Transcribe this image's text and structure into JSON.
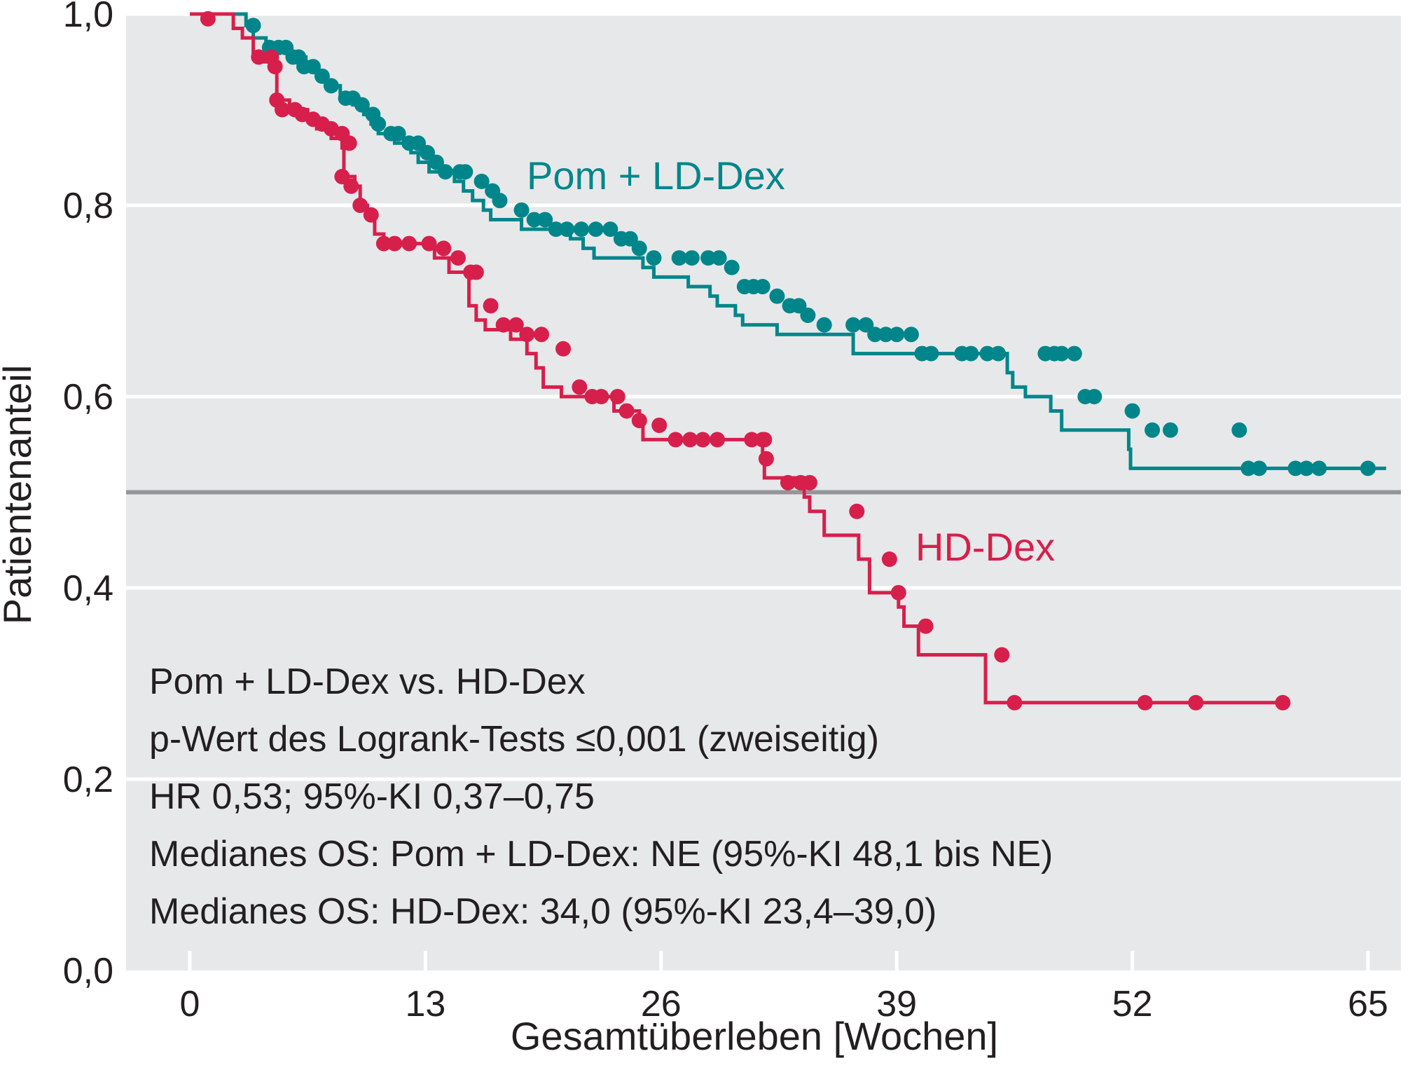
{
  "chart_data": {
    "type": "line",
    "subtype": "kaplan-meier",
    "xlabel": "Gesamtüberleben [Wochen]",
    "ylabel": "Patientenanteil",
    "xlim": [
      -3.5,
      66
    ],
    "ylim": [
      0,
      1.0
    ],
    "x_ticks": [
      0,
      13,
      26,
      39,
      52,
      65
    ],
    "x_tick_labels": [
      "0",
      "13",
      "26",
      "39",
      "52",
      "65"
    ],
    "y_ticks": [
      0.0,
      0.2,
      0.4,
      0.6,
      0.8,
      1.0
    ],
    "y_tick_labels": [
      "0,0",
      "0,2",
      "0,4",
      "0,6",
      "0,8",
      "1,0"
    ],
    "grid": "horizontal",
    "background_color": "#e7e8ea",
    "grid_color": "#ffffff",
    "reference_line": {
      "y": 0.5,
      "color": "#939598"
    },
    "series": [
      {
        "name": "Pom + LD-Dex",
        "color": "#00868a",
        "steps": [
          [
            0,
            1.0
          ],
          [
            3.1,
            0.988
          ],
          [
            3.5,
            0.975
          ],
          [
            4.2,
            0.965
          ],
          [
            5.5,
            0.955
          ],
          [
            6.4,
            0.945
          ],
          [
            7.1,
            0.935
          ],
          [
            7.6,
            0.925
          ],
          [
            8.3,
            0.912
          ],
          [
            9.0,
            0.905
          ],
          [
            9.6,
            0.895
          ],
          [
            10.0,
            0.885
          ],
          [
            10.4,
            0.875
          ],
          [
            11.3,
            0.865
          ],
          [
            12.2,
            0.855
          ],
          [
            12.6,
            0.845
          ],
          [
            13.2,
            0.835
          ],
          [
            14.6,
            0.825
          ],
          [
            15.1,
            0.815
          ],
          [
            15.6,
            0.805
          ],
          [
            16.2,
            0.795
          ],
          [
            16.6,
            0.785
          ],
          [
            18.3,
            0.775
          ],
          [
            21.0,
            0.765
          ],
          [
            21.7,
            0.755
          ],
          [
            22.3,
            0.745
          ],
          [
            25.0,
            0.735
          ],
          [
            25.6,
            0.725
          ],
          [
            27.5,
            0.715
          ],
          [
            28.7,
            0.705
          ],
          [
            29.1,
            0.695
          ],
          [
            30.1,
            0.685
          ],
          [
            30.5,
            0.675
          ],
          [
            32.4,
            0.665
          ],
          [
            36.6,
            0.645
          ],
          [
            45.1,
            0.625
          ],
          [
            45.4,
            0.61
          ],
          [
            46.1,
            0.6
          ],
          [
            47.5,
            0.585
          ],
          [
            48.1,
            0.565
          ],
          [
            51.8,
            0.545
          ],
          [
            51.9,
            0.525
          ]
        ],
        "end_x": 66.0,
        "censored_x": [
          3.5,
          4.4,
          4.9,
          5.3,
          5.7,
          6.0,
          6.3,
          6.8,
          7.3,
          7.8,
          8.6,
          9.0,
          9.5,
          10.1,
          10.4,
          11.1,
          11.5,
          12.1,
          12.6,
          13.1,
          13.6,
          14.1,
          14.9,
          15.2,
          16.1,
          16.7,
          17.1,
          18.3,
          19.0,
          19.6,
          20.2,
          20.8,
          21.6,
          22.4,
          23.2,
          23.8,
          24.3,
          24.8,
          25.6,
          27.0,
          27.7,
          28.6,
          29.2,
          29.9,
          30.6,
          31.1,
          31.6,
          32.4,
          33.1,
          33.6,
          34.1,
          35.0,
          36.6,
          37.3,
          37.8,
          38.4,
          39.0,
          39.8,
          40.4,
          40.9,
          42.6,
          43.1,
          44.0,
          44.6,
          47.2,
          47.7,
          48.1,
          48.8,
          49.4,
          49.9,
          52.0,
          53.1,
          54.1,
          57.9,
          58.4,
          59.0,
          61.0,
          61.6,
          62.3,
          65.0
        ],
        "censored_y": [
          0.988,
          0.965,
          0.965,
          0.965,
          0.955,
          0.955,
          0.945,
          0.945,
          0.935,
          0.925,
          0.912,
          0.912,
          0.905,
          0.895,
          0.885,
          0.875,
          0.875,
          0.865,
          0.865,
          0.855,
          0.845,
          0.835,
          0.835,
          0.835,
          0.825,
          0.815,
          0.805,
          0.795,
          0.785,
          0.785,
          0.775,
          0.775,
          0.775,
          0.775,
          0.775,
          0.765,
          0.765,
          0.755,
          0.745,
          0.745,
          0.745,
          0.745,
          0.745,
          0.735,
          0.715,
          0.715,
          0.715,
          0.705,
          0.695,
          0.695,
          0.685,
          0.675,
          0.675,
          0.675,
          0.665,
          0.665,
          0.665,
          0.665,
          0.645,
          0.645,
          0.645,
          0.645,
          0.645,
          0.645,
          0.645,
          0.645,
          0.645,
          0.645,
          0.6,
          0.6,
          0.585,
          0.565,
          0.565,
          0.565,
          0.525,
          0.525,
          0.525,
          0.525,
          0.525,
          0.525
        ],
        "label_text": "Pom + LD-Dex"
      },
      {
        "name": "HD-Dex",
        "color": "#d71f4b",
        "steps": [
          [
            0,
            1.0
          ],
          [
            2.4,
            0.985
          ],
          [
            2.9,
            0.975
          ],
          [
            3.5,
            0.96
          ],
          [
            3.9,
            0.95
          ],
          [
            4.6,
            0.94
          ],
          [
            4.8,
            0.91
          ],
          [
            5.5,
            0.9
          ],
          [
            6.5,
            0.89
          ],
          [
            7.0,
            0.88
          ],
          [
            7.8,
            0.87
          ],
          [
            8.4,
            0.86
          ],
          [
            8.5,
            0.83
          ],
          [
            9.1,
            0.82
          ],
          [
            9.4,
            0.8
          ],
          [
            9.8,
            0.79
          ],
          [
            10.2,
            0.77
          ],
          [
            10.7,
            0.76
          ],
          [
            13.5,
            0.745
          ],
          [
            14.3,
            0.73
          ],
          [
            15.4,
            0.695
          ],
          [
            15.8,
            0.68
          ],
          [
            16.3,
            0.67
          ],
          [
            17.7,
            0.66
          ],
          [
            18.6,
            0.645
          ],
          [
            19.1,
            0.63
          ],
          [
            19.5,
            0.61
          ],
          [
            20.5,
            0.6
          ],
          [
            23.4,
            0.585
          ],
          [
            24.8,
            0.57
          ],
          [
            25.0,
            0.555
          ],
          [
            31.6,
            0.535
          ],
          [
            31.7,
            0.515
          ],
          [
            33.9,
            0.495
          ],
          [
            34.2,
            0.48
          ],
          [
            35.0,
            0.455
          ],
          [
            36.9,
            0.43
          ],
          [
            37.5,
            0.395
          ],
          [
            39.1,
            0.38
          ],
          [
            39.4,
            0.36
          ],
          [
            40.2,
            0.33
          ],
          [
            43.9,
            0.28
          ]
        ],
        "end_x": 60.5,
        "censored_x": [
          1.0,
          3.8,
          4.5,
          4.7,
          4.8,
          5.1,
          5.8,
          6.2,
          6.8,
          7.3,
          7.8,
          8.4,
          8.8,
          8.4,
          8.9,
          9.4,
          10.0,
          10.7,
          11.3,
          12.1,
          13.2,
          14.0,
          14.8,
          15.5,
          15.8,
          16.6,
          17.3,
          18.0,
          18.6,
          19.4,
          20.6,
          21.5,
          22.2,
          22.7,
          23.6,
          24.1,
          24.8,
          25.9,
          26.8,
          27.6,
          28.3,
          29.1,
          31.0,
          31.6,
          31.7,
          31.8,
          33.0,
          33.7,
          34.2,
          36.8,
          38.6,
          39.1,
          40.6,
          44.8,
          45.5,
          52.7,
          55.5,
          60.3
        ],
        "censored_y": [
          0.995,
          0.955,
          0.955,
          0.945,
          0.91,
          0.9,
          0.9,
          0.895,
          0.89,
          0.885,
          0.88,
          0.875,
          0.865,
          0.83,
          0.82,
          0.8,
          0.79,
          0.76,
          0.76,
          0.76,
          0.76,
          0.755,
          0.745,
          0.73,
          0.73,
          0.695,
          0.675,
          0.675,
          0.665,
          0.665,
          0.65,
          0.61,
          0.6,
          0.6,
          0.6,
          0.585,
          0.575,
          0.57,
          0.555,
          0.555,
          0.555,
          0.555,
          0.555,
          0.555,
          0.555,
          0.535,
          0.51,
          0.51,
          0.51,
          0.48,
          0.43,
          0.395,
          0.36,
          0.33,
          0.28,
          0.28,
          0.28,
          0.28
        ],
        "label_text": "HD-Dex"
      }
    ],
    "annotations": [
      "Pom + LD-Dex vs. HD-Dex",
      "p-Wert des Logrank-Tests ≤0,001 (zweiseitig)",
      "HR 0,53; 95%-KI 0,37–0,75",
      "Medianes OS: Pom + LD-Dex: NE (95%-KI 48,1 bis NE)",
      "Medianes OS: HD-Dex: 34,0 (95%-KI 23,4–39,0)"
    ]
  }
}
